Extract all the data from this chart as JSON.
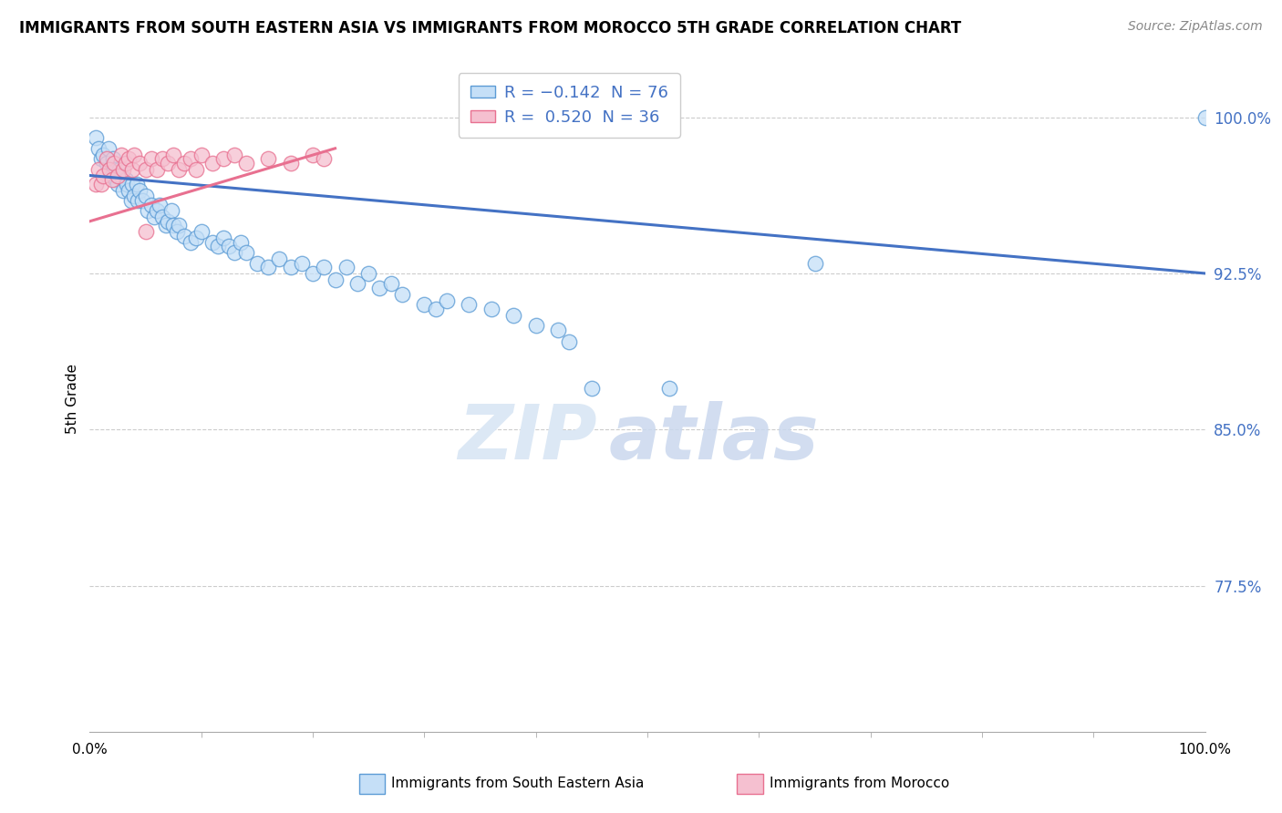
{
  "title": "IMMIGRANTS FROM SOUTH EASTERN ASIA VS IMMIGRANTS FROM MOROCCO 5TH GRADE CORRELATION CHART",
  "source": "Source: ZipAtlas.com",
  "ylabel": "5th Grade",
  "xlim": [
    0.0,
    1.0
  ],
  "ylim": [
    0.705,
    1.025
  ],
  "blue_R": -0.142,
  "blue_N": 76,
  "pink_R": 0.52,
  "pink_N": 36,
  "blue_fill": "#c5dff7",
  "blue_edge": "#5b9bd5",
  "pink_fill": "#f5c0d0",
  "pink_edge": "#e87090",
  "blue_line": "#4472c4",
  "pink_line": "#e87090",
  "grid_color": "#cccccc",
  "ytick_positions": [
    0.775,
    0.85,
    0.925,
    1.0
  ],
  "ytick_labels": [
    "77.5%",
    "85.0%",
    "92.5%",
    "100.0%"
  ],
  "blue_scatter_x": [
    0.005,
    0.008,
    0.01,
    0.012,
    0.015,
    0.017,
    0.018,
    0.02,
    0.021,
    0.022,
    0.023,
    0.025,
    0.027,
    0.028,
    0.03,
    0.032,
    0.033,
    0.035,
    0.037,
    0.038,
    0.04,
    0.042,
    0.043,
    0.045,
    0.047,
    0.05,
    0.052,
    0.055,
    0.058,
    0.06,
    0.063,
    0.065,
    0.068,
    0.07,
    0.073,
    0.075,
    0.078,
    0.08,
    0.085,
    0.09,
    0.095,
    0.1,
    0.11,
    0.115,
    0.12,
    0.125,
    0.13,
    0.135,
    0.14,
    0.15,
    0.16,
    0.17,
    0.18,
    0.19,
    0.2,
    0.21,
    0.22,
    0.23,
    0.24,
    0.25,
    0.26,
    0.27,
    0.28,
    0.3,
    0.31,
    0.32,
    0.34,
    0.36,
    0.38,
    0.4,
    0.42,
    0.43,
    0.45,
    0.52,
    0.65,
    1.0
  ],
  "blue_scatter_y": [
    0.99,
    0.985,
    0.98,
    0.982,
    0.978,
    0.985,
    0.975,
    0.972,
    0.98,
    0.975,
    0.97,
    0.968,
    0.975,
    0.972,
    0.965,
    0.97,
    0.968,
    0.965,
    0.96,
    0.968,
    0.962,
    0.968,
    0.96,
    0.965,
    0.96,
    0.962,
    0.955,
    0.958,
    0.952,
    0.955,
    0.958,
    0.952,
    0.948,
    0.95,
    0.955,
    0.948,
    0.945,
    0.948,
    0.943,
    0.94,
    0.942,
    0.945,
    0.94,
    0.938,
    0.942,
    0.938,
    0.935,
    0.94,
    0.935,
    0.93,
    0.928,
    0.932,
    0.928,
    0.93,
    0.925,
    0.928,
    0.922,
    0.928,
    0.92,
    0.925,
    0.918,
    0.92,
    0.915,
    0.91,
    0.908,
    0.912,
    0.91,
    0.908,
    0.905,
    0.9,
    0.898,
    0.892,
    0.87,
    0.87,
    0.93,
    1.0
  ],
  "pink_scatter_x": [
    0.005,
    0.008,
    0.01,
    0.012,
    0.015,
    0.018,
    0.02,
    0.022,
    0.025,
    0.028,
    0.03,
    0.032,
    0.035,
    0.038,
    0.04,
    0.045,
    0.05,
    0.055,
    0.06,
    0.065,
    0.07,
    0.075,
    0.08,
    0.085,
    0.09,
    0.095,
    0.1,
    0.11,
    0.12,
    0.13,
    0.14,
    0.16,
    0.18,
    0.2,
    0.21,
    0.05
  ],
  "pink_scatter_y": [
    0.968,
    0.975,
    0.968,
    0.972,
    0.98,
    0.975,
    0.97,
    0.978,
    0.972,
    0.982,
    0.975,
    0.978,
    0.98,
    0.975,
    0.982,
    0.978,
    0.975,
    0.98,
    0.975,
    0.98,
    0.978,
    0.982,
    0.975,
    0.978,
    0.98,
    0.975,
    0.982,
    0.978,
    0.98,
    0.982,
    0.978,
    0.98,
    0.978,
    0.982,
    0.98,
    0.945
  ],
  "blue_trend_x": [
    0.0,
    1.0
  ],
  "blue_trend_y": [
    0.972,
    0.925
  ],
  "pink_trend_x": [
    0.0,
    0.22
  ],
  "pink_trend_y": [
    0.95,
    0.985
  ]
}
